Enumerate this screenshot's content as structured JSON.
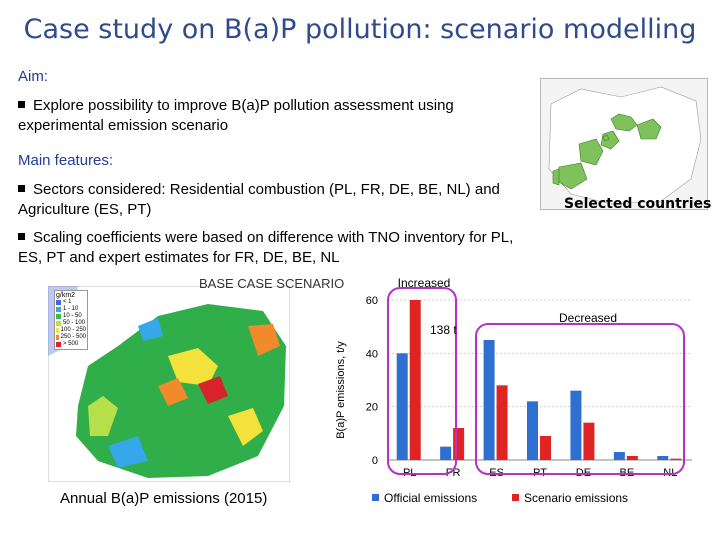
{
  "title": "Case study on B(a)P pollution: scenario modelling",
  "aim": {
    "heading": "Aim:",
    "bullets": [
      "Explore possibility to improve B(a)P pollution assessment using experimental emission scenario"
    ]
  },
  "main_features": {
    "heading": "Main features:",
    "bullets": [
      "Sectors considered: Residential combustion (PL, FR, DE, BE, NL) and Agriculture (ES, PT)",
      "Scaling coefficients were based on difference with TNO inventory for PL, ES, PT and expert estimates for FR, DE, BE, NL"
    ]
  },
  "inset_map": {
    "label": "Selected countries"
  },
  "emission_map": {
    "overlay_label": "BASE CASE SCENARIO",
    "legend_unit": "g/km2",
    "legend_entries": [
      "< 1",
      "1 - 10",
      "10 - 50",
      "50 - 100",
      "100 - 250",
      "250 - 500",
      "> 500"
    ],
    "legend_colors": [
      "#4a63d8",
      "#36a7e8",
      "#3fb94f",
      "#b6e04a",
      "#f3e23b",
      "#f08a2b",
      "#d9232a"
    ],
    "caption": "Annual B(a)P emissions (2015)"
  },
  "chart_data": {
    "type": "bar",
    "categories": [
      "PL",
      "FR",
      "ES",
      "PT",
      "DE",
      "BE",
      "NL"
    ],
    "series": [
      {
        "name": "Official emissions",
        "values": [
          40,
          5,
          45,
          22,
          26,
          3,
          1.5
        ],
        "color": "#2e6fd1"
      },
      {
        "name": "Scenario emissions",
        "values": [
          60,
          12,
          28,
          9,
          14,
          1.5,
          0.5
        ],
        "color": "#e02424"
      }
    ],
    "ylabel": "B(a)P emissions, t/y",
    "yticks": [
      0,
      20,
      40,
      60
    ],
    "ylim": [
      0,
      60
    ],
    "grid": true,
    "legend_position": "bottom",
    "annotations": {
      "increased": "Increased",
      "decreased": "Decreased",
      "amount": "138 t"
    }
  }
}
